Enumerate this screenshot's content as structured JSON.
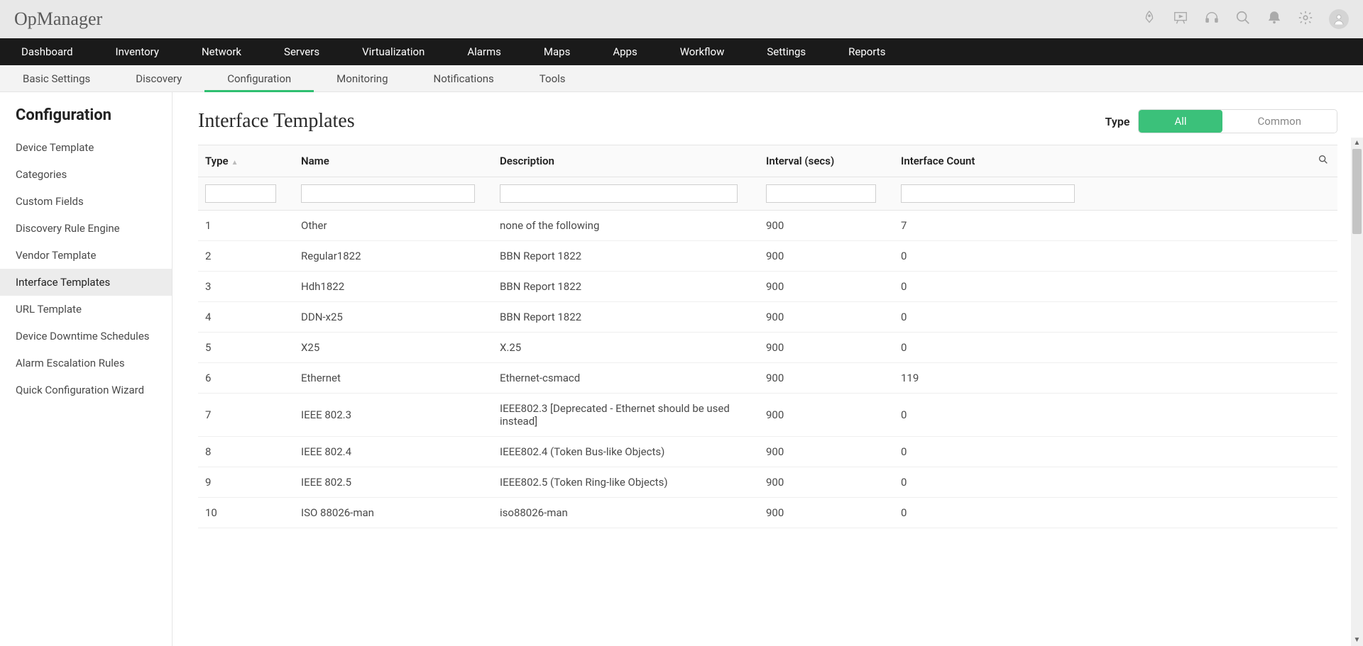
{
  "app": {
    "name": "OpManager"
  },
  "topbar_icons": [
    "rocket",
    "presentation",
    "headset",
    "search",
    "bell",
    "gear",
    "avatar"
  ],
  "primary_nav": [
    "Dashboard",
    "Inventory",
    "Network",
    "Servers",
    "Virtualization",
    "Alarms",
    "Maps",
    "Apps",
    "Workflow",
    "Settings",
    "Reports"
  ],
  "secondary_nav": {
    "items": [
      "Basic Settings",
      "Discovery",
      "Configuration",
      "Monitoring",
      "Notifications",
      "Tools"
    ],
    "active_index": 2
  },
  "sidebar": {
    "title": "Configuration",
    "items": [
      "Device Template",
      "Categories",
      "Custom Fields",
      "Discovery Rule Engine",
      "Vendor Template",
      "Interface Templates",
      "URL Template",
      "Device Downtime Schedules",
      "Alarm Escalation Rules",
      "Quick Configuration Wizard"
    ],
    "active_index": 5
  },
  "page": {
    "title": "Interface Templates",
    "type_label": "Type",
    "tabs": [
      "All",
      "Common"
    ],
    "active_tab": 0
  },
  "table": {
    "columns": [
      "Type",
      "Name",
      "Description",
      "Interval (secs)",
      "Interface Count"
    ],
    "sort_column": 0,
    "rows": [
      {
        "type": "1",
        "name": "Other",
        "desc": "none of the following",
        "interval": "900",
        "count": "7"
      },
      {
        "type": "2",
        "name": "Regular1822",
        "desc": "BBN Report 1822",
        "interval": "900",
        "count": "0"
      },
      {
        "type": "3",
        "name": "Hdh1822",
        "desc": "BBN Report 1822",
        "interval": "900",
        "count": "0"
      },
      {
        "type": "4",
        "name": "DDN-x25",
        "desc": "BBN Report 1822",
        "interval": "900",
        "count": "0"
      },
      {
        "type": "5",
        "name": "X25",
        "desc": "X.25",
        "interval": "900",
        "count": "0"
      },
      {
        "type": "6",
        "name": "Ethernet",
        "desc": "Ethernet-csmacd",
        "interval": "900",
        "count": "119"
      },
      {
        "type": "7",
        "name": "IEEE 802.3",
        "desc": "IEEE802.3 [Deprecated - Ethernet should be used instead]",
        "interval": "900",
        "count": "0"
      },
      {
        "type": "8",
        "name": "IEEE 802.4",
        "desc": "IEEE802.4 (Token Bus-like Objects)",
        "interval": "900",
        "count": "0"
      },
      {
        "type": "9",
        "name": "IEEE 802.5",
        "desc": "IEEE802.5 (Token Ring-like Objects)",
        "interval": "900",
        "count": "0"
      },
      {
        "type": "10",
        "name": "ISO 88026-man",
        "desc": "iso88026-man",
        "interval": "900",
        "count": "0"
      }
    ]
  },
  "colors": {
    "accent": "#3bc17a",
    "nav_bg": "#1a1a1a",
    "topbar_bg": "#e8e8e8",
    "subnav_bg": "#f3f3f3",
    "border": "#e5e5e5"
  }
}
